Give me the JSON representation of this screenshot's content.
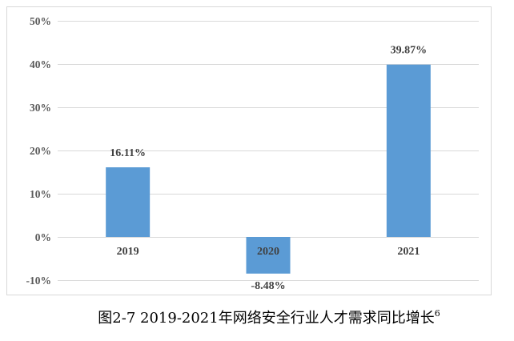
{
  "chart_data": {
    "type": "bar",
    "categories": [
      "2019",
      "2020",
      "2021"
    ],
    "values": [
      16.11,
      -8.48,
      39.87
    ],
    "data_labels": [
      "16.11%",
      "-8.48%",
      "39.87%"
    ],
    "y_ticks": [
      {
        "value": 50,
        "label": "50%"
      },
      {
        "value": 40,
        "label": "40%"
      },
      {
        "value": 30,
        "label": "30%"
      },
      {
        "value": 20,
        "label": "20%"
      },
      {
        "value": 10,
        "label": "10%"
      },
      {
        "value": 0,
        "label": "0%"
      },
      {
        "value": -10,
        "label": "-10%"
      }
    ],
    "ylim": [
      -10,
      50
    ],
    "grid": true,
    "legend": "none",
    "colors": {
      "bar": "#5B9BD5",
      "grid": "#D9D9D9",
      "axis_text": "#595959",
      "label_text": "#404040"
    }
  },
  "caption": {
    "text": "图2-7 2019-2021年网络安全行业人才需求同比增长",
    "footnote": "6"
  }
}
